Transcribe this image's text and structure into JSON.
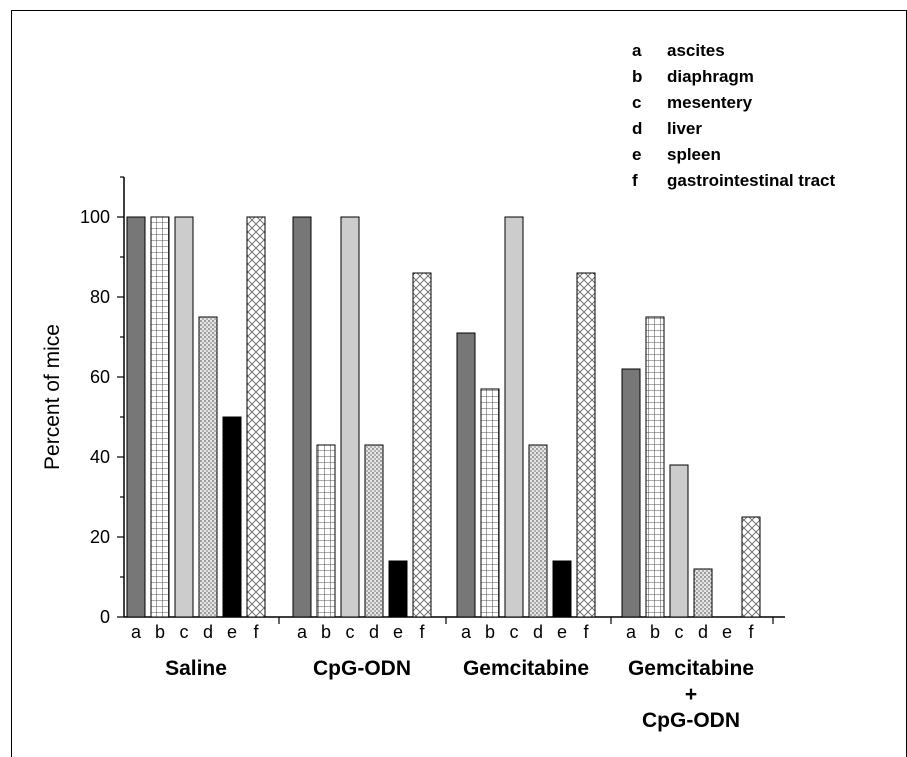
{
  "chart_data": {
    "type": "bar",
    "ylabel": "Percent of mice",
    "ylim": [
      0,
      110
    ],
    "yticks": [
      "0",
      "20",
      "40",
      "60",
      "80",
      "100"
    ],
    "bar_letters": [
      "a",
      "b",
      "c",
      "d",
      "e",
      "f"
    ],
    "legend": [
      {
        "key": "a",
        "label": "ascites",
        "pattern": "dark-solid"
      },
      {
        "key": "b",
        "label": "diaphragm",
        "pattern": "grid"
      },
      {
        "key": "c",
        "label": "mesentery",
        "pattern": "light-solid"
      },
      {
        "key": "d",
        "label": "liver",
        "pattern": "dots"
      },
      {
        "key": "e",
        "label": "spleen",
        "pattern": "black-solid"
      },
      {
        "key": "f",
        "label": "gastrointestinal tract",
        "pattern": "crosshatch"
      }
    ],
    "groups": [
      {
        "name": "Saline",
        "name_lines": [
          "Saline"
        ],
        "values": [
          100,
          100,
          100,
          75,
          50,
          100
        ]
      },
      {
        "name": "CpG-ODN",
        "name_lines": [
          "CpG-ODN"
        ],
        "values": [
          100,
          43,
          100,
          43,
          14,
          86
        ]
      },
      {
        "name": "Gemcitabine",
        "name_lines": [
          "Gemcitabine"
        ],
        "values": [
          71,
          57,
          100,
          43,
          14,
          86
        ]
      },
      {
        "name": "Gemcitabine + CpG-ODN",
        "name_lines": [
          "Gemcitabine",
          "+",
          "CpG-ODN"
        ],
        "values": [
          62,
          75,
          38,
          12,
          0,
          25
        ]
      }
    ],
    "colors": {
      "dark": "#777777",
      "light": "#cccccc",
      "black": "#000000",
      "pattern_stroke": "#555555"
    }
  }
}
